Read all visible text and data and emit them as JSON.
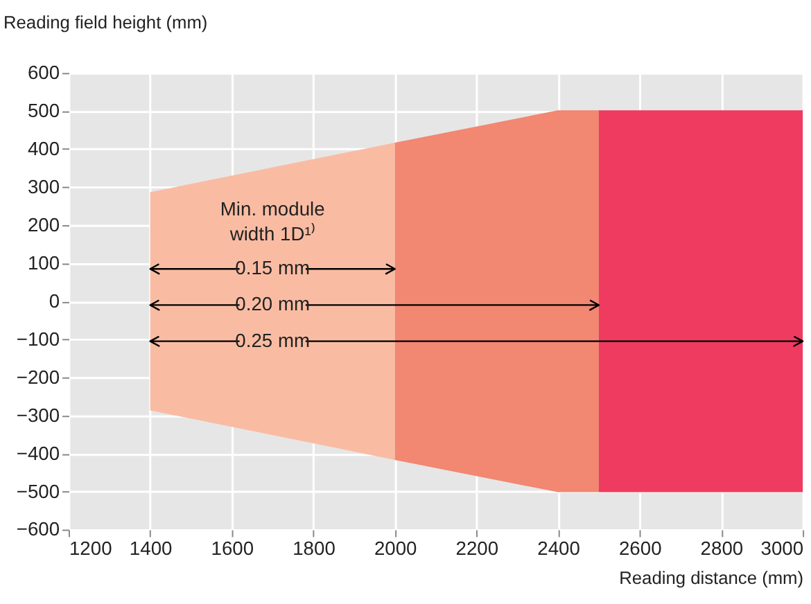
{
  "chart_data": {
    "type": "area",
    "series": [
      {
        "color": "#f9bca3",
        "x": [
          1400,
          2000
        ],
        "values": [
          285,
          415
        ]
      },
      {
        "color": "#f9bca3",
        "x": [
          1400,
          2000
        ],
        "values": [
          -285,
          -415
        ]
      },
      {
        "color": "#f28772",
        "x": [
          2000,
          2400,
          2500
        ],
        "values": [
          415,
          500,
          500
        ]
      },
      {
        "color": "#f28772",
        "x": [
          2000,
          2400,
          2500
        ],
        "values": [
          -415,
          -500,
          -500
        ]
      },
      {
        "color": "#ee3b5f",
        "x": [
          2500,
          3000
        ],
        "values": [
          500,
          500
        ]
      },
      {
        "color": "#ee3b5f",
        "x": [
          2500,
          3000
        ],
        "values": [
          -500,
          -500
        ]
      }
    ],
    "xlim": [
      1200,
      3000
    ],
    "xticks": [
      1200,
      1400,
      1600,
      1800,
      2000,
      2200,
      2400,
      2600,
      2800,
      3000
    ],
    "ylim": [
      -600,
      600
    ],
    "yticks": [
      -600,
      -500,
      -400,
      -300,
      -200,
      -100,
      0,
      100,
      200,
      300,
      400,
      500,
      600
    ],
    "xlabel": "Reading distance (mm)",
    "ylabel": "Reading field height (mm)",
    "annotations": [
      "Min. module width 1D¹⁾",
      {
        "text": "0.15 mm",
        "x": 2000,
        "y": 85
      },
      {
        "text": "0.20 mm",
        "x": 2500,
        "y": -10
      },
      {
        "text": "0.25 mm",
        "x": 3000,
        "y": -105
      }
    ],
    "grid": true,
    "legend": false
  }
}
